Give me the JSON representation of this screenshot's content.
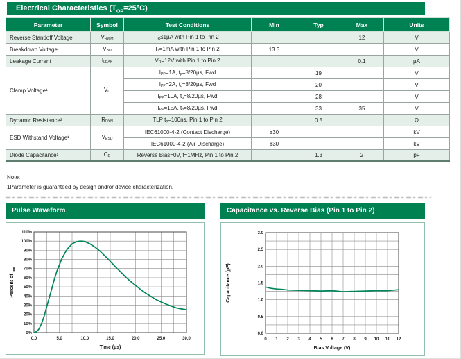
{
  "title_bar": {
    "text": "Electrical Characteristics (T~OP~=25°C)"
  },
  "table": {
    "headers": [
      "Parameter",
      "Symbol",
      "Test Conditions",
      "Min",
      "Typ",
      "Max",
      "Units"
    ],
    "rows": [
      {
        "shade": true,
        "cells": [
          {
            "text": "Reverse Standoff Voltage",
            "align": "left"
          },
          {
            "text": "V~RWM~"
          },
          {
            "text": "I~R~≤1µA with Pin 1 to Pin 2"
          },
          {
            "text": ""
          },
          {
            "text": ""
          },
          {
            "text": "12"
          },
          {
            "text": "V"
          }
        ]
      },
      {
        "shade": false,
        "cells": [
          {
            "text": "Breakdown Voltage",
            "align": "left"
          },
          {
            "text": "V~BD~"
          },
          {
            "text": "I~T~=1mA with Pin 1 to Pin 2"
          },
          {
            "text": "13.3"
          },
          {
            "text": ""
          },
          {
            "text": ""
          },
          {
            "text": "V"
          }
        ]
      },
      {
        "shade": true,
        "cells": [
          {
            "text": "Leakage Current",
            "align": "left"
          },
          {
            "text": "I~LEAK~"
          },
          {
            "text": "V~R~=12V with Pin 1 to Pin 2"
          },
          {
            "text": ""
          },
          {
            "text": ""
          },
          {
            "text": "0.1"
          },
          {
            "text": "µA"
          }
        ]
      },
      {
        "shade": false,
        "cells": [
          {
            "text": "Clamp Voltage¹",
            "align": "left",
            "rowspan": 4
          },
          {
            "text": "V~C~",
            "rowspan": 4
          },
          {
            "text": "I~PP~=1A, t~p~=8/20µs, Fwd"
          },
          {
            "text": ""
          },
          {
            "text": "19"
          },
          {
            "text": ""
          },
          {
            "text": "V"
          }
        ]
      },
      {
        "shade": false,
        "cells": [
          {
            "text": "I~PP~=2A, t~p~=8/20µs, Fwd"
          },
          {
            "text": ""
          },
          {
            "text": "20"
          },
          {
            "text": ""
          },
          {
            "text": "V"
          }
        ]
      },
      {
        "shade": false,
        "cells": [
          {
            "text": "I~PP~=10A, t~p~=8/20µs, Fwd"
          },
          {
            "text": ""
          },
          {
            "text": "28"
          },
          {
            "text": ""
          },
          {
            "text": "V"
          }
        ]
      },
      {
        "shade": false,
        "cells": [
          {
            "text": "I~PP~=15A, t~p~=8/20µs, Fwd"
          },
          {
            "text": ""
          },
          {
            "text": "33"
          },
          {
            "text": "35"
          },
          {
            "text": "V"
          }
        ]
      },
      {
        "shade": true,
        "cells": [
          {
            "text": "Dynamic Resistance²",
            "align": "left"
          },
          {
            "text": "R~DYN~"
          },
          {
            "text": "TLP t~p~=100ns, Pin 1 to Pin 2"
          },
          {
            "text": ""
          },
          {
            "text": "0.5"
          },
          {
            "text": ""
          },
          {
            "text": "Ω"
          }
        ]
      },
      {
        "shade": false,
        "cells": [
          {
            "text": "ESD Withstand Voltage¹",
            "align": "left",
            "rowspan": 2
          },
          {
            "text": "V~ESD~",
            "rowspan": 2
          },
          {
            "text": "IEC61000-4-2 (Contact Discharge)"
          },
          {
            "text": "±30"
          },
          {
            "text": ""
          },
          {
            "text": ""
          },
          {
            "text": "kV"
          }
        ]
      },
      {
        "shade": false,
        "cells": [
          {
            "text": "IEC61000-4-2 (Air Discharge)"
          },
          {
            "text": "±30"
          },
          {
            "text": ""
          },
          {
            "text": ""
          },
          {
            "text": "kV"
          }
        ]
      },
      {
        "shade": true,
        "cells": [
          {
            "text": "Diode Capacitance¹",
            "align": "left"
          },
          {
            "text": "C~D~"
          },
          {
            "text": "Reverse Bias=0V, f=1MHz, Pin 1 to Pin 2"
          },
          {
            "text": ""
          },
          {
            "text": "1.3"
          },
          {
            "text": "2"
          },
          {
            "text": "pF"
          }
        ]
      }
    ]
  },
  "notes": {
    "label": "Note:",
    "items": [
      "1Parameter is guaranteed by design and/or device characterization."
    ]
  },
  "chart_data": [
    {
      "type": "line",
      "title": "Pulse Waveform",
      "xlabel": "Time (µs)",
      "ylabel": "Percent of I~PP~",
      "xlim": [
        0,
        30
      ],
      "ylim": [
        0,
        110
      ],
      "grid": {
        "x_step": 2.5,
        "y_step": 10,
        "on": true
      },
      "legend": "none",
      "x_tick_labels": [
        "0.0",
        "5.0",
        "10.0",
        "15.0",
        "20.0",
        "25.0",
        "30.0"
      ],
      "y_tick_labels": [
        "0%",
        "10%",
        "20%",
        "30%",
        "40%",
        "50%",
        "60%",
        "70%",
        "80%",
        "90%",
        "100%",
        "110%"
      ],
      "series": [
        {
          "name": "8/20µs pulse",
          "color": "#00855c",
          "points": [
            [
              0,
              0
            ],
            [
              0.5,
              1
            ],
            [
              1,
              4
            ],
            [
              1.5,
              10
            ],
            [
              2,
              18
            ],
            [
              2.5,
              28
            ],
            [
              3,
              38
            ],
            [
              3.5,
              48
            ],
            [
              4,
              58
            ],
            [
              4.5,
              67
            ],
            [
              5,
              74
            ],
            [
              5.5,
              81
            ],
            [
              6,
              86
            ],
            [
              6.5,
              91
            ],
            [
              7,
              94
            ],
            [
              7.5,
              97
            ],
            [
              8,
              98.5
            ],
            [
              8.5,
              99.5
            ],
            [
              9,
              100
            ],
            [
              9.5,
              100
            ],
            [
              10,
              99.5
            ],
            [
              11,
              97
            ],
            [
              12,
              93.5
            ],
            [
              13,
              89
            ],
            [
              14,
              83.5
            ],
            [
              15,
              78
            ],
            [
              16,
              72
            ],
            [
              17,
              66.5
            ],
            [
              18,
              61
            ],
            [
              19,
              56
            ],
            [
              20,
              51.5
            ],
            [
              21,
              47
            ],
            [
              22,
              43
            ],
            [
              23,
              39.5
            ],
            [
              24,
              36
            ],
            [
              25,
              33.5
            ],
            [
              26,
              31
            ],
            [
              27,
              29
            ],
            [
              28,
              27
            ],
            [
              29,
              25.8
            ],
            [
              30,
              25
            ]
          ]
        }
      ]
    },
    {
      "type": "line",
      "title": "Capacitance vs. Reverse Bias (Pin 1 to Pin 2)",
      "xlabel": "Bias Voltage (V)",
      "ylabel": "Capacitance (pF)",
      "xlim": [
        0,
        12
      ],
      "ylim": [
        0,
        3
      ],
      "grid": {
        "x_step": 1,
        "y_step": 0.25,
        "on": true
      },
      "legend": "none",
      "x_tick_labels": [
        "0",
        "1",
        "2",
        "3",
        "4",
        "5",
        "6",
        "7",
        "8",
        "9",
        "10",
        "11",
        "12"
      ],
      "y_tick_labels": [
        "0.0",
        "0.5",
        "1.0",
        "1.5",
        "2.0",
        "2.5",
        "3.0"
      ],
      "series": [
        {
          "name": "capacitance",
          "color": "#00855c",
          "points": [
            [
              0,
              1.38
            ],
            [
              0.5,
              1.34
            ],
            [
              1,
              1.32
            ],
            [
              1.5,
              1.31
            ],
            [
              2,
              1.29
            ],
            [
              3,
              1.28
            ],
            [
              4,
              1.27
            ],
            [
              5,
              1.26
            ],
            [
              6,
              1.27
            ],
            [
              7,
              1.24
            ],
            [
              8,
              1.25
            ],
            [
              9,
              1.26
            ],
            [
              10,
              1.27
            ],
            [
              11,
              1.27
            ],
            [
              12,
              1.3
            ]
          ]
        }
      ]
    }
  ],
  "colors": {
    "brand_green": "#008152",
    "row_shade": "#e3efe8",
    "curve_green": "#00855c",
    "grid_gray": "#8b8b8b",
    "panel_border": "#90c0ab"
  }
}
